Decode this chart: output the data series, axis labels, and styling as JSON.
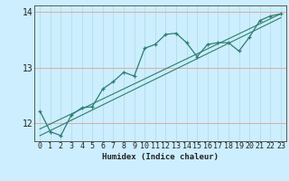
{
  "xlabel": "Humidex (Indice chaleur)",
  "background_color": "#cceeff",
  "grid_color_v": "#aadddd",
  "grid_color_h": "#ddaaaa",
  "line_color": "#2e7d6e",
  "xlim": [
    -0.5,
    23.5
  ],
  "ylim": [
    11.68,
    14.12
  ],
  "yticks": [
    12,
    13,
    14
  ],
  "xticks": [
    0,
    1,
    2,
    3,
    4,
    5,
    6,
    7,
    8,
    9,
    10,
    11,
    12,
    13,
    14,
    15,
    16,
    17,
    18,
    19,
    20,
    21,
    22,
    23
  ],
  "main_x": [
    0,
    1,
    2,
    3,
    4,
    5,
    6,
    7,
    8,
    9,
    10,
    11,
    12,
    13,
    14,
    15,
    16,
    17,
    18,
    19,
    20,
    21,
    22,
    23
  ],
  "main_y": [
    12.22,
    11.85,
    11.78,
    12.15,
    12.28,
    12.3,
    12.62,
    12.75,
    12.92,
    12.85,
    13.35,
    13.42,
    13.6,
    13.62,
    13.45,
    13.2,
    13.42,
    13.45,
    13.45,
    13.3,
    13.55,
    13.85,
    13.93,
    13.97
  ],
  "line1_x": [
    0,
    23
  ],
  "line1_y": [
    11.9,
    13.97
  ],
  "line2_x": [
    0,
    23
  ],
  "line2_y": [
    11.78,
    13.9
  ],
  "xlabel_fontsize": 6.5,
  "tick_fontsize": 6,
  "ytick_fontsize": 7
}
